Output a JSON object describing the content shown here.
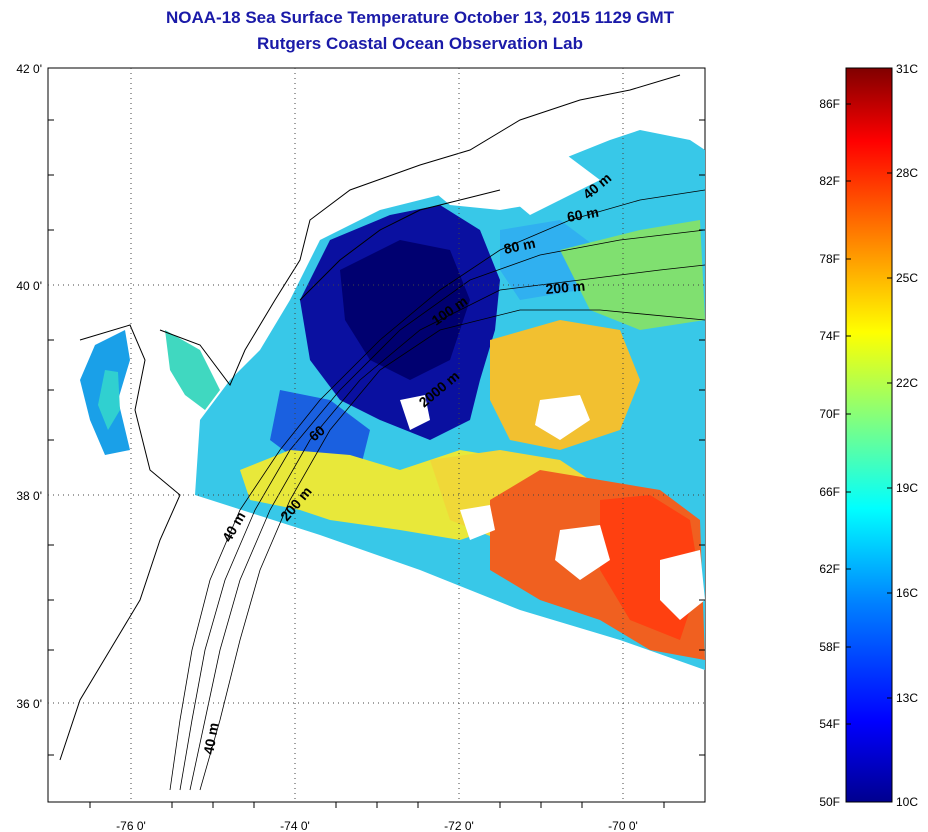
{
  "header": {
    "title": "NOAA-18 Sea Surface Temperature October 13, 2015 1129 GMT",
    "subtitle": "Rutgers Coastal Ocean Observation Lab"
  },
  "map": {
    "lat_labels": [
      "42 0'",
      "40 0'",
      "38 0'",
      "36 0'"
    ],
    "lon_labels": [
      "-76 0'",
      "-74 0'",
      "-72 0'",
      "-70 0'"
    ],
    "grid": "dotted",
    "depth_labels": [
      "40 m",
      "60 m",
      "80 m",
      "200 m",
      "100 m",
      "2000 m",
      "60",
      "200 m",
      "40 m",
      "40 m"
    ]
  },
  "colorbar": {
    "fahrenheit": [
      "86F",
      "82F",
      "78F",
      "74F",
      "70F",
      "66F",
      "62F",
      "58F",
      "54F",
      "50F"
    ],
    "celsius": [
      "31C",
      "28C",
      "25C",
      "22C",
      "19C",
      "16C",
      "13C",
      "10C"
    ],
    "colors": [
      "#00008f",
      "#0000ff",
      "#0080ff",
      "#00ffff",
      "#80ff80",
      "#ffff00",
      "#ff8000",
      "#ff0000",
      "#800000"
    ]
  }
}
